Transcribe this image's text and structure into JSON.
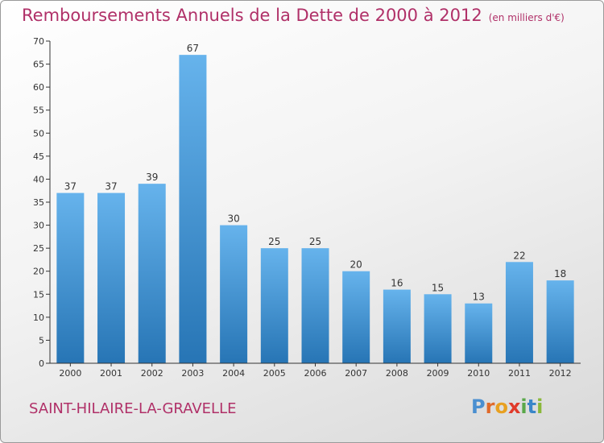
{
  "header": {
    "title": "Remboursements Annuels de la Dette de 2000 à 2012",
    "subtitle": "(en milliers d'€)"
  },
  "footer": {
    "commune": "SAINT-HILAIRE-LA-GRAVELLE",
    "logo_letters": [
      "P",
      "r",
      "o",
      "x",
      "i",
      "t",
      "i"
    ],
    "logo_colors": [
      "#4a8fd0",
      "#e06a2a",
      "#e8a020",
      "#e03a2a",
      "#5aa84a",
      "#3a86c8",
      "#8ab83a"
    ]
  },
  "colors": {
    "bar_light": "#66b3ec",
    "bar_dark": "#2775b5",
    "axis": "#333333",
    "title": "#b03068"
  },
  "chart_data": {
    "type": "bar",
    "title": "Remboursements Annuels de la Dette de 2000 à 2012",
    "ylabel": "en milliers d'€",
    "xlabel": "",
    "categories": [
      "2000",
      "2001",
      "2002",
      "2003",
      "2004",
      "2005",
      "2006",
      "2007",
      "2008",
      "2009",
      "2010",
      "2011",
      "2012"
    ],
    "values": [
      37,
      37,
      39,
      67,
      30,
      25,
      25,
      20,
      16,
      15,
      13,
      22,
      18
    ],
    "ylim": [
      0,
      70
    ],
    "yticks": [
      0,
      5,
      10,
      15,
      20,
      25,
      30,
      35,
      40,
      45,
      50,
      55,
      60,
      65,
      70
    ],
    "grid": false,
    "data_labels": true
  }
}
